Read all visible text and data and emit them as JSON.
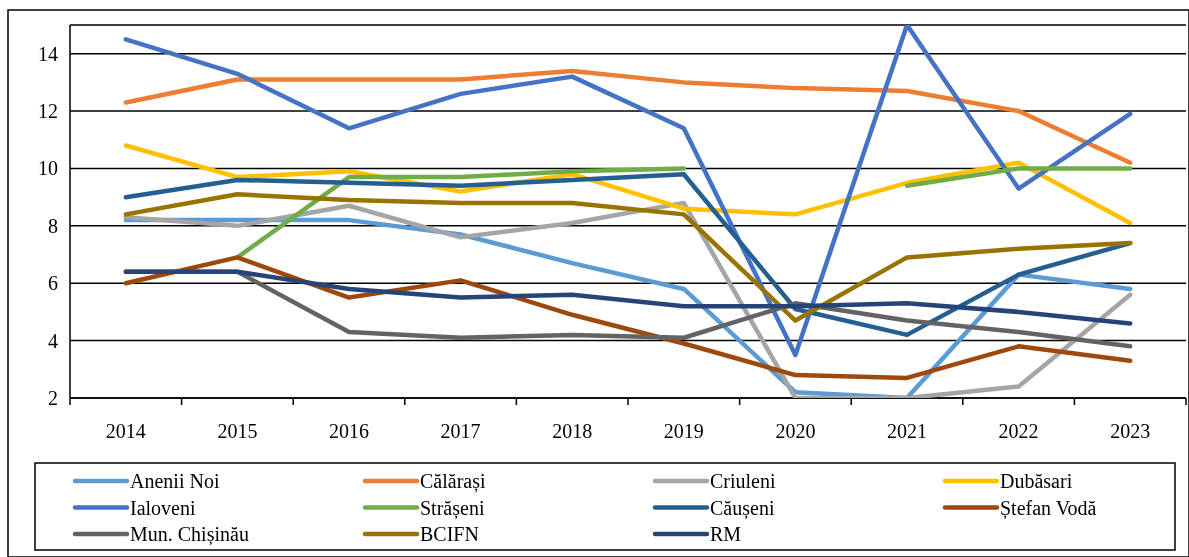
{
  "chart_data": {
    "type": "line",
    "categories": [
      "2014",
      "2015",
      "2016",
      "2017",
      "2018",
      "2019",
      "2020",
      "2021",
      "2022",
      "2023"
    ],
    "ylim": [
      2,
      15
    ],
    "yticks": [
      2,
      4,
      6,
      8,
      10,
      12,
      14
    ],
    "grid": "y",
    "legend": "bottom",
    "line_style": "solid",
    "series": [
      {
        "name": "Anenii Noi",
        "color": "#5b9bd5",
        "values": [
          8.2,
          8.2,
          8.2,
          7.7,
          6.7,
          5.8,
          2.2,
          2.0,
          6.3,
          5.8
        ]
      },
      {
        "name": "Călărași",
        "color": "#ed7d31",
        "values": [
          12.3,
          13.1,
          13.1,
          13.1,
          13.4,
          13.0,
          12.8,
          12.7,
          12.0,
          10.2
        ]
      },
      {
        "name": "Criuleni",
        "color": "#a5a5a5",
        "values": [
          8.3,
          8.0,
          8.7,
          7.6,
          8.1,
          8.8,
          2.0,
          2.0,
          2.4,
          5.6
        ]
      },
      {
        "name": "Dubăsari",
        "color": "#ffc000",
        "values": [
          10.8,
          9.7,
          9.9,
          9.2,
          9.8,
          8.6,
          8.4,
          9.5,
          10.2,
          8.1
        ]
      },
      {
        "name": "Ialoveni",
        "color": "#4472c4",
        "values": [
          14.5,
          13.3,
          11.4,
          12.6,
          13.2,
          11.4,
          3.5,
          15.0,
          9.3,
          11.9
        ]
      },
      {
        "name": "Strășeni",
        "color": "#70ad47",
        "values": [
          null,
          6.9,
          9.7,
          9.7,
          9.9,
          10.0,
          null,
          9.4,
          10.0,
          10.0
        ]
      },
      {
        "name": "Căușeni",
        "color": "#255e91",
        "values": [
          9.0,
          9.6,
          9.5,
          9.4,
          9.6,
          9.8,
          5.1,
          4.2,
          6.3,
          7.4
        ]
      },
      {
        "name": "Ștefan Vodă",
        "color": "#9e480e",
        "values": [
          6.0,
          6.9,
          5.5,
          6.1,
          4.9,
          3.9,
          2.8,
          2.7,
          3.8,
          3.3
        ]
      },
      {
        "name": "Mun. Chișinău",
        "color": "#636363",
        "values": [
          6.4,
          6.4,
          4.3,
          4.1,
          4.2,
          4.1,
          5.3,
          4.7,
          4.3,
          3.8
        ]
      },
      {
        "name": "BCIFN",
        "color": "#997300",
        "values": [
          8.4,
          9.1,
          8.9,
          8.8,
          8.8,
          8.4,
          4.7,
          6.9,
          7.2,
          7.4
        ]
      },
      {
        "name": "RM",
        "color": "#264478",
        "values": [
          6.4,
          6.4,
          5.8,
          5.5,
          5.6,
          5.2,
          5.2,
          5.3,
          5.0,
          4.6
        ]
      }
    ]
  }
}
